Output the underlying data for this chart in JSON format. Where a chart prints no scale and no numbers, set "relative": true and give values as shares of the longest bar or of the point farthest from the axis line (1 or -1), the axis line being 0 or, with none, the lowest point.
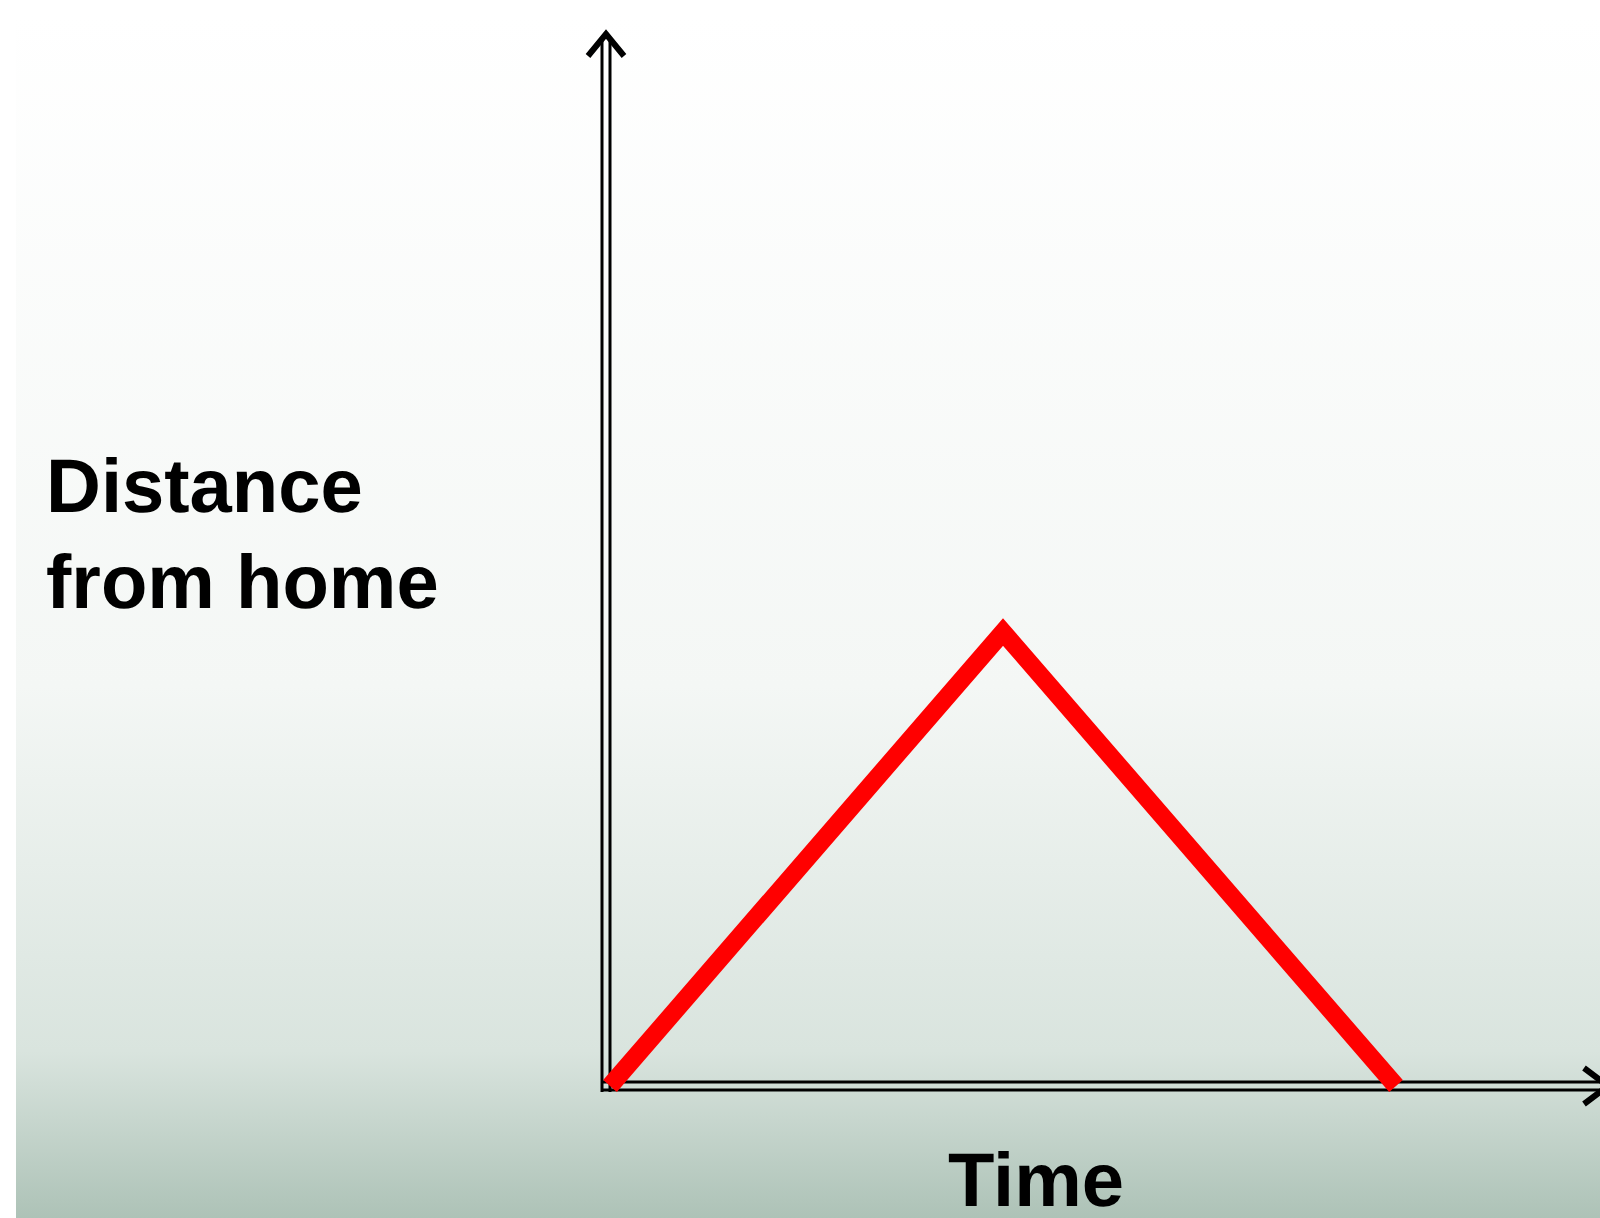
{
  "chart_data": {
    "type": "line",
    "xlabel": "Time",
    "ylabel": "Distance\nfrom home",
    "categories": [
      null,
      null,
      null
    ],
    "values": [
      0,
      1,
      0
    ],
    "color": "#ff0000",
    "relative": true
  }
}
